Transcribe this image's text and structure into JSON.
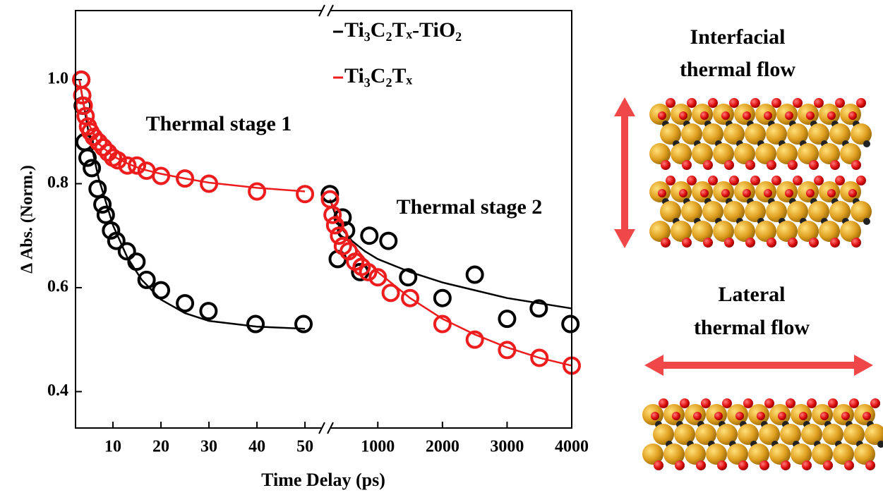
{
  "chart_data": [
    {
      "type": "scatter",
      "x_label": "Time Delay (ps)",
      "y_label": "Δ Abs. (Norm.)",
      "annotation": "Thermal stage 1",
      "xlim": [
        2.2,
        54.4
      ],
      "ylim": [
        0.33,
        1.133
      ],
      "xticks": [
        10,
        20,
        30,
        40,
        50
      ],
      "yticks": [
        0.4,
        0.6,
        0.8,
        {
          "value": 1.0,
          "label": "1.0"
        }
      ],
      "series": [
        {
          "name": "Ti₃C₂Tₓ-TiO₂",
          "mode": "line",
          "color": "#000000",
          "x": [
            3,
            5,
            7,
            10,
            13,
            16,
            20,
            25,
            30,
            40,
            50
          ],
          "values": [
            1.0,
            0.894,
            0.811,
            0.72,
            0.658,
            0.615,
            0.577,
            0.551,
            0.536,
            0.525,
            0.521
          ]
        },
        {
          "name": "Ti₃C₂Tₓ",
          "mode": "line",
          "color": "#ee1c1c",
          "x": [
            3,
            4,
            5,
            7,
            10,
            13,
            16,
            20,
            25,
            30,
            40,
            50
          ],
          "values": [
            1.0,
            0.948,
            0.914,
            0.877,
            0.853,
            0.839,
            0.828,
            0.819,
            0.81,
            0.802,
            0.792,
            0.785
          ]
        },
        {
          "mode": "markers",
          "color": "#000000",
          "x": [
            3.4,
            3.7,
            4.1,
            4.7,
            5.6,
            6.8,
            7.8,
            8.5,
            9.6,
            10.7,
            12.9,
            14.9,
            17.0,
            20.0,
            25.0,
            29.9,
            39.7,
            49.7
          ],
          "values": [
            1.0,
            0.95,
            0.88,
            0.85,
            0.83,
            0.79,
            0.76,
            0.74,
            0.71,
            0.69,
            0.67,
            0.65,
            0.615,
            0.595,
            0.57,
            0.555,
            0.53,
            0.53
          ]
        },
        {
          "mode": "markers",
          "color": "#ee1c1c",
          "x": [
            3.4,
            3.6,
            3.9,
            4.3,
            4.8,
            5.3,
            6,
            7,
            8,
            9,
            10,
            11,
            13,
            15,
            17,
            20,
            25,
            30,
            40,
            50
          ],
          "values": [
            1.0,
            0.97,
            0.95,
            0.93,
            0.91,
            0.9,
            0.89,
            0.88,
            0.87,
            0.86,
            0.85,
            0.845,
            0.835,
            0.835,
            0.825,
            0.815,
            0.81,
            0.8,
            0.785,
            0.78
          ]
        }
      ]
    },
    {
      "type": "scatter",
      "annotation": "Thermal stage 2",
      "xlim": [
        200,
        4000
      ],
      "ylim": [
        0.33,
        1.133
      ],
      "xticks": [
        1000,
        2000,
        3000,
        4000
      ],
      "series": [
        {
          "mode": "line",
          "color": "#000000",
          "x": [
            260,
            400,
            600,
            800,
            1000,
            1500,
            2000,
            2500,
            3000,
            3500,
            4000
          ],
          "values": [
            0.77,
            0.72,
            0.69,
            0.67,
            0.655,
            0.63,
            0.61,
            0.595,
            0.58,
            0.57,
            0.56
          ]
        },
        {
          "mode": "line",
          "color": "#ee1c1c",
          "x": [
            260,
            400,
            600,
            800,
            1000,
            1500,
            2000,
            2500,
            3000,
            3500,
            4000
          ],
          "values": [
            0.77,
            0.73,
            0.685,
            0.655,
            0.63,
            0.58,
            0.54,
            0.51,
            0.485,
            0.465,
            0.45
          ]
        },
        {
          "mode": "markers",
          "color": "#000000",
          "x": [
            258,
            380,
            455,
            509,
            727,
            869,
            1164,
            1469,
            2000,
            2500,
            3000,
            3490,
            3980
          ],
          "values": [
            0.78,
            0.655,
            0.735,
            0.71,
            0.63,
            0.7,
            0.69,
            0.62,
            0.58,
            0.625,
            0.54,
            0.56,
            0.53
          ]
        },
        {
          "mode": "markers",
          "color": "#ee1c1c",
          "x": [
            260,
            300,
            340,
            400,
            460,
            550,
            650,
            750,
            850,
            1000,
            1200,
            1500,
            2000,
            2500,
            3000,
            3500,
            4000
          ],
          "values": [
            0.77,
            0.74,
            0.72,
            0.7,
            0.68,
            0.67,
            0.65,
            0.64,
            0.63,
            0.62,
            0.59,
            0.58,
            0.53,
            0.5,
            0.48,
            0.465,
            0.45
          ]
        }
      ]
    }
  ],
  "diagram": {
    "interfacial": [
      "Interfacial",
      "thermal flow"
    ],
    "lateral": [
      "Lateral",
      "thermal flow"
    ]
  }
}
